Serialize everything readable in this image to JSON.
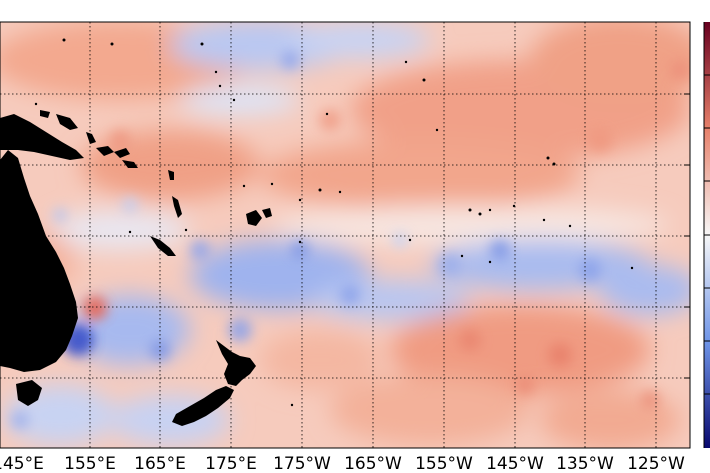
{
  "map": {
    "longitude_labels": [
      "145°E",
      "155°E",
      "165°E",
      "175°E",
      "175°W",
      "165°W",
      "155°W",
      "145°W",
      "135°W",
      "125°W"
    ],
    "colormap": "diverging blue-white-red",
    "colors": {
      "land": "#000000",
      "warm": "#f2a58d",
      "cool": "#4a6fe0",
      "neutral": "#ffffff",
      "grid": "#000000",
      "colorbar_top": "#67001f"
    },
    "grid": "dotted",
    "colorbar": "right edge, partially visible, no labels shown"
  }
}
